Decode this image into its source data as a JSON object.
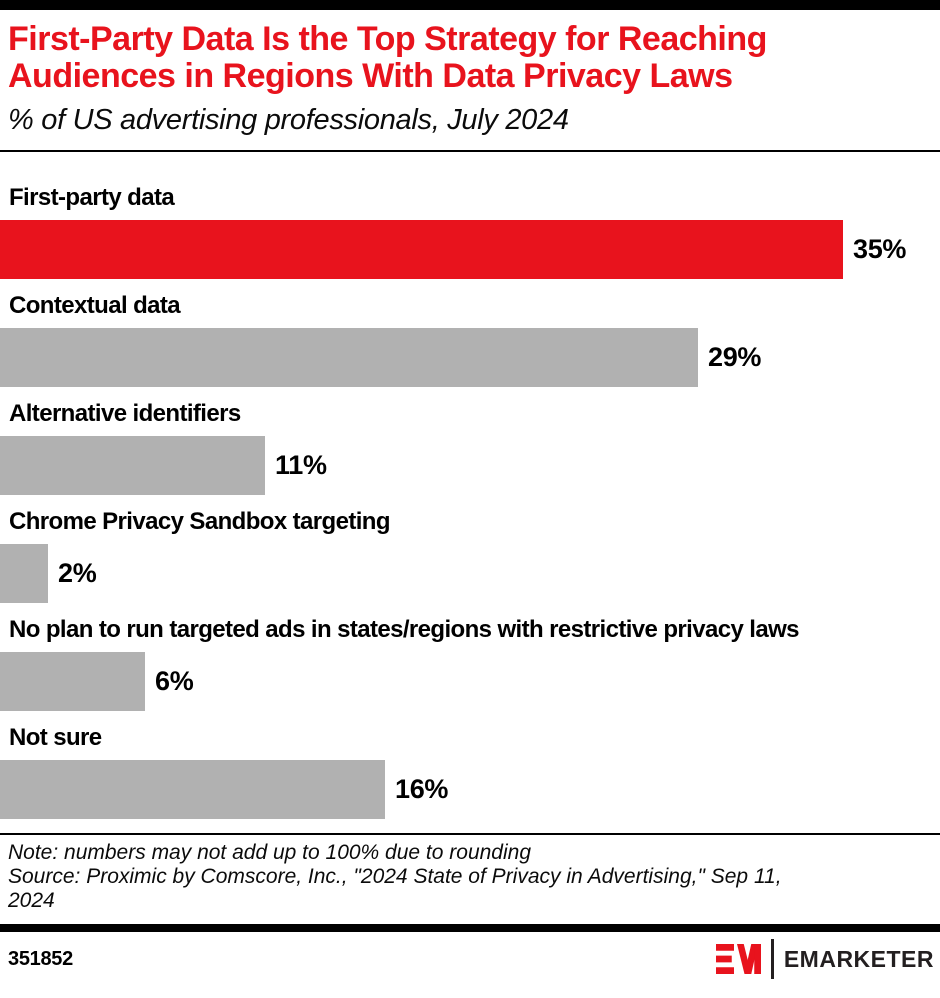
{
  "header": {
    "title": "First-Party Data Is the Top Strategy for Reaching Audiences in Regions With Data Privacy Laws",
    "title_lines": [
      "First-Party Data Is the Top Strategy for Reaching",
      "Audiences in Regions With Data Privacy Laws"
    ],
    "subtitle": "% of US advertising professionals, July 2024"
  },
  "chart_data": {
    "type": "bar",
    "orientation": "horizontal",
    "title": "First-Party Data Is the Top Strategy for Reaching Audiences in Regions With Data Privacy Laws",
    "subtitle": "% of US advertising professionals, July 2024",
    "unit": "%",
    "categories": [
      "First-party data",
      "Contextual data",
      "Alternative identifiers",
      "Chrome Privacy Sandbox targeting",
      "No plan to run targeted ads in states/regions with restrictive privacy laws",
      "Not sure"
    ],
    "values": [
      35,
      29,
      11,
      2,
      6,
      16
    ],
    "display_values": [
      "35%",
      "29%",
      "11%",
      "2%",
      "6%",
      "16%"
    ],
    "bar_colors": [
      "#E8131D",
      "#B1B1B1",
      "#B1B1B1",
      "#B1B1B1",
      "#B1B1B1",
      "#B1B1B1"
    ],
    "xlim": [
      0,
      39
    ],
    "grid": "off",
    "axes": "none",
    "value_label_position": "right-of-bar",
    "highlight_index": 0
  },
  "footer": {
    "note_lines": [
      "Note: numbers may not add up to 100% due to rounding",
      "Source: Proximic by Comscore, Inc., \"2024 State of Privacy in Advertising,\" Sep 11,",
      "2024"
    ],
    "chart_id": "351852",
    "brand_monogram": "EM",
    "brand_wordmark": "EMARKETER"
  },
  "colors": {
    "accent_red": "#E8131D",
    "bar_gray": "#B1B1B1",
    "rule_black": "#000000",
    "logo_dark": "#231F20"
  }
}
